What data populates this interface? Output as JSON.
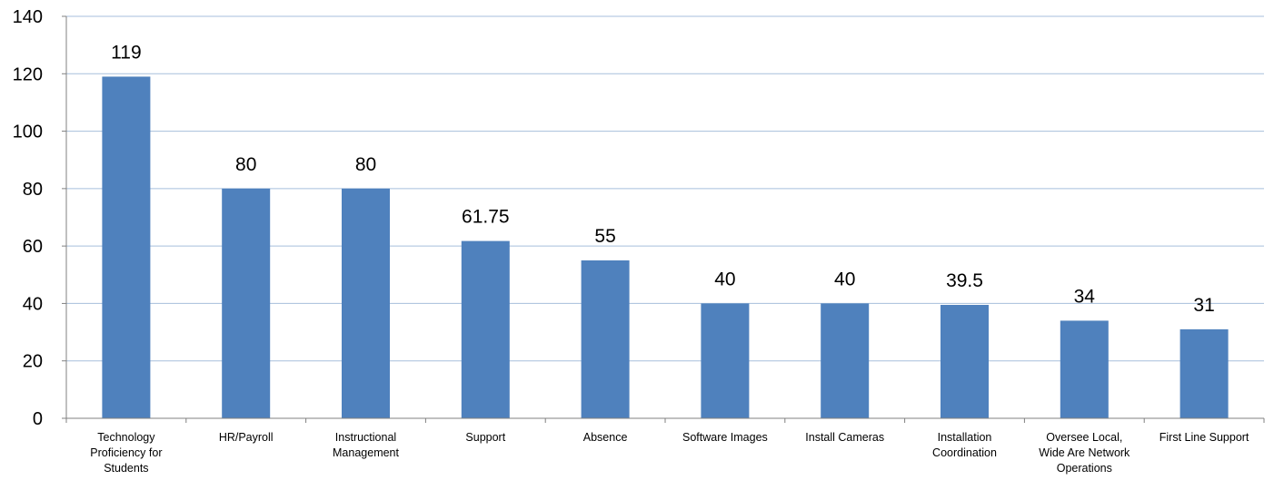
{
  "chart_data": {
    "type": "bar",
    "title": "",
    "xlabel": "",
    "ylabel": "",
    "ylim": [
      0,
      140
    ],
    "yticks": [
      0,
      20,
      40,
      60,
      80,
      100,
      120,
      140
    ],
    "grid": "horizontal",
    "legend": "none",
    "categories": [
      "Technology Proficiency for Students",
      "HR/Payroll",
      "Instructional Management",
      "Support",
      "Absence",
      "Software Images",
      "Install Cameras",
      "Installation Coordination",
      "Oversee Local, Wide Are Network Operations",
      "First Line Support"
    ],
    "category_lines": [
      [
        "Technology",
        "Proficiency for",
        "Students"
      ],
      [
        "HR/Payroll"
      ],
      [
        "Instructional",
        "Management"
      ],
      [
        "Support"
      ],
      [
        "Absence"
      ],
      [
        "Software Images"
      ],
      [
        "Install Cameras"
      ],
      [
        "Installation",
        "Coordination"
      ],
      [
        "Oversee Local,",
        "Wide Are Network",
        "Operations"
      ],
      [
        "First Line Support"
      ]
    ],
    "values": [
      119,
      80,
      80,
      61.75,
      55,
      40,
      40,
      39.5,
      34,
      31
    ],
    "data_labels": [
      "119",
      "80",
      "80",
      "61.75",
      "55",
      "40",
      "40",
      "39.5",
      "34",
      "31"
    ]
  },
  "colors": {
    "bar": "#4f81bd",
    "gridline": "#a7bfdc",
    "axis": "#808080"
  }
}
